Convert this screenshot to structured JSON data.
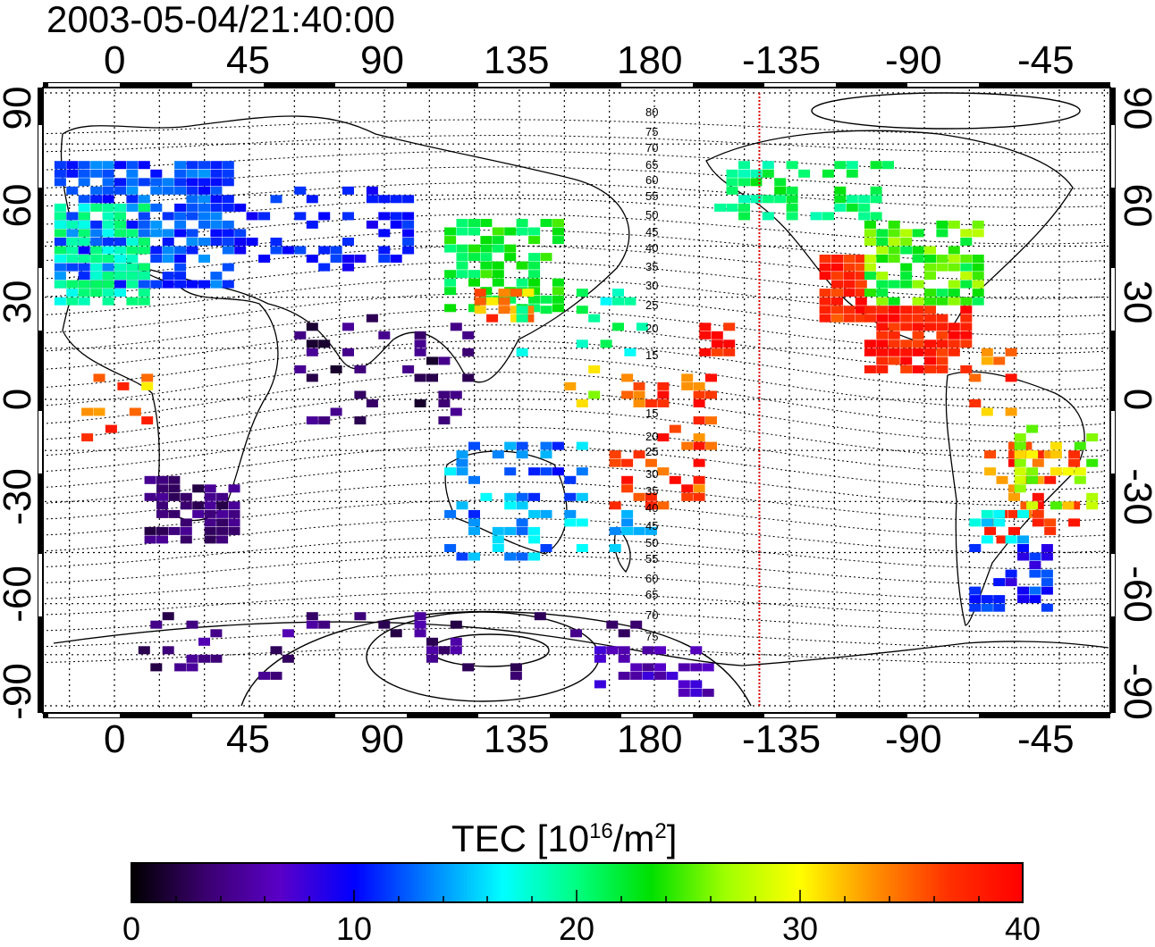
{
  "title": "2003-05-04/21:40:00",
  "map": {
    "top_lon_labels": [
      "0",
      "45",
      "90",
      "135",
      "180",
      "-135",
      "-90",
      "-45"
    ],
    "bottom_lon_labels": [
      "0",
      "45",
      "90",
      "135",
      "180",
      "-135",
      "-90",
      "-45"
    ],
    "lat_labels": [
      "90",
      "60",
      "30",
      "0",
      "-30",
      "-60",
      "-90"
    ],
    "contour_labels": [
      "80",
      "75",
      "70",
      "65",
      "60",
      "55",
      "50",
      "45",
      "40",
      "35",
      "30",
      "25",
      "20",
      "15",
      "15",
      "20",
      "25",
      "30",
      "35",
      "40",
      "45",
      "50",
      "55",
      "60",
      "65",
      "70",
      "75"
    ],
    "terminator_color": "#e00000",
    "terminator_lon": -145
  },
  "colorbar": {
    "title_prefix": "TEC  [10",
    "title_exp1": "16",
    "title_mid": "/m",
    "title_exp2": "2",
    "title_suffix": "]",
    "ticks": [
      "0",
      "10",
      "20",
      "30",
      "40"
    ],
    "min": 0,
    "max": 40,
    "colors": [
      "#000000",
      "#3a006e",
      "#5a00c8",
      "#0000ff",
      "#0080ff",
      "#00ffff",
      "#00ff80",
      "#00e000",
      "#a0ff00",
      "#ffff00",
      "#ff9000",
      "#ff3000",
      "#ff0000"
    ]
  }
}
